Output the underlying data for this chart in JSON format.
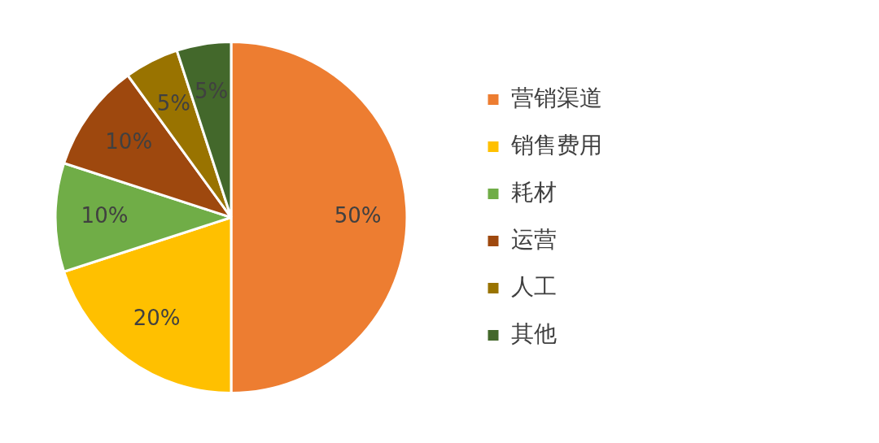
{
  "chart_data": {
    "type": "pie",
    "categories": [
      "营销渠道",
      "销售费用",
      "耗材",
      "运营",
      "人工",
      "其他"
    ],
    "values": [
      50,
      20,
      10,
      10,
      5,
      5
    ],
    "colors": [
      "#ed7d31",
      "#ffc000",
      "#70ad47",
      "#9e480e",
      "#997300",
      "#43682b"
    ],
    "value_labels": [
      "50%",
      "20%",
      "10%",
      "10%",
      "5%",
      "5%"
    ],
    "legend": "right"
  }
}
